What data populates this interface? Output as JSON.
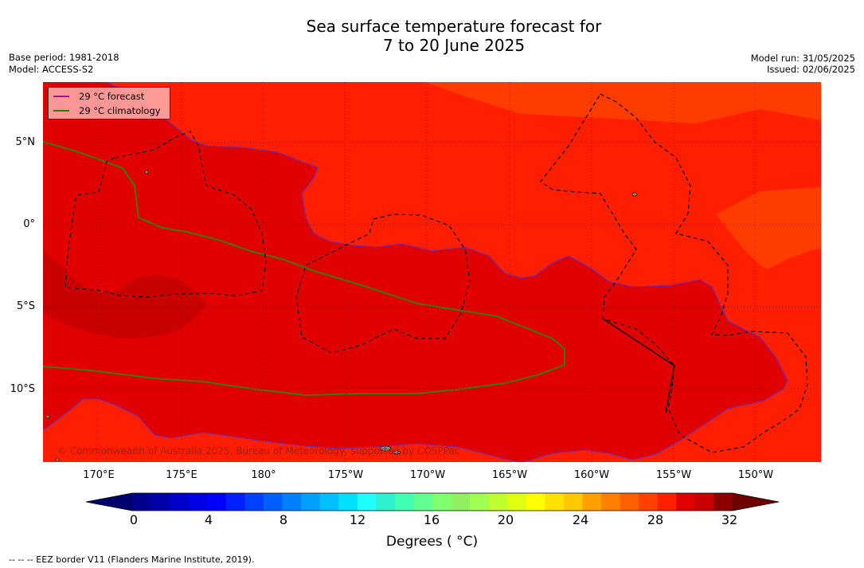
{
  "title_line1": "Sea surface temperature forecast for",
  "title_line2": "7 to 20 June 2025",
  "meta": {
    "base_period": "Base period: 1981-2018",
    "model": "Model: ACCESS-S2",
    "model_run": "Model run: 31/05/2025",
    "issued": "Issued: 02/06/2025"
  },
  "map": {
    "lat_labels": [
      "5°N",
      "0°",
      "5°S",
      "10°S"
    ],
    "lon_labels": [
      "170°E",
      "175°E",
      "180°",
      "175°W",
      "170°W",
      "165°W",
      "160°W",
      "155°W",
      "150°W"
    ],
    "legend": [
      {
        "label": "29 °C  forecast",
        "color": "#a0148c"
      },
      {
        "label": "29 °C  climatology",
        "color": "#2a7a0a"
      }
    ],
    "copyright": "© Commonwealth of Australia 2025, Bureau of Meteorology, supported by COSPPac",
    "colors": {
      "sst_28_29": "#ff1e00",
      "sst_27_28": "#ff3c00",
      "sst_29_30": "#e10000",
      "sst_30_31": "#c80000"
    }
  },
  "colorbar": {
    "colors": [
      "#00008c",
      "#0000a8",
      "#0000c8",
      "#0000e6",
      "#0000ff",
      "#0020ff",
      "#0040ff",
      "#0060ff",
      "#0080ff",
      "#00a0ff",
      "#00c0ff",
      "#00e0ff",
      "#20ffff",
      "#30f0d0",
      "#40ffb0",
      "#60ff90",
      "#80ff70",
      "#90f060",
      "#a0ff50",
      "#c0ff30",
      "#e0ff10",
      "#ffff00",
      "#ffe000",
      "#ffc800",
      "#ffa000",
      "#ff8000",
      "#ff6000",
      "#ff4000",
      "#ff2000",
      "#e10000",
      "#c80000",
      "#8c0000"
    ],
    "under_color": "#00006e",
    "over_color": "#6e0000",
    "ticks": [
      "0",
      "4",
      "8",
      "12",
      "16",
      "20",
      "24",
      "28",
      "32"
    ],
    "label": "Degrees ( °C)"
  },
  "eez_note": "--  --  -- EEZ border V11 (Flanders Marine Institute, 2019)."
}
